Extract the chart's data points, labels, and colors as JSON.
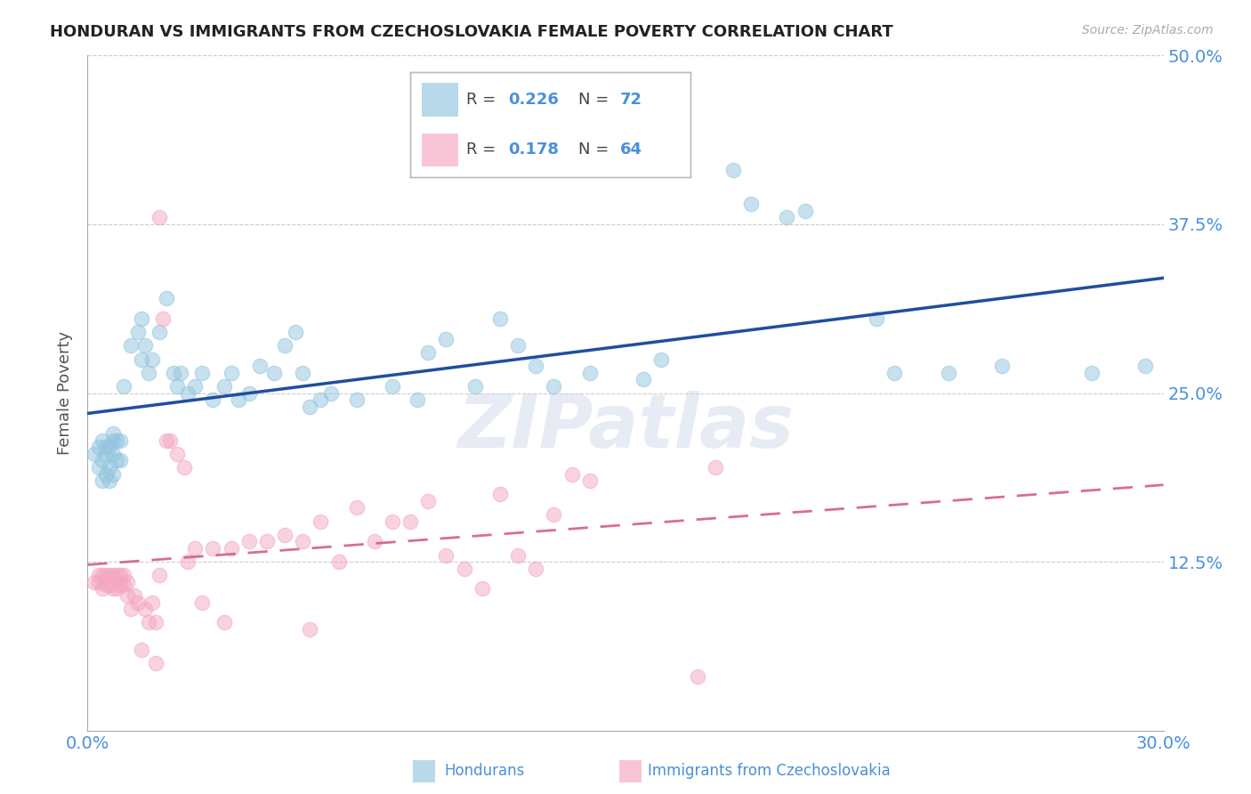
{
  "title": "HONDURAN VS IMMIGRANTS FROM CZECHOSLOVAKIA FEMALE POVERTY CORRELATION CHART",
  "source": "Source: ZipAtlas.com",
  "ylabel_label": "Female Poverty",
  "xmin": 0.0,
  "xmax": 0.3,
  "ymin": 0.0,
  "ymax": 0.5,
  "blue_color": "#92c5de",
  "pink_color": "#f4a6c0",
  "blue_line_color": "#1f4e9e",
  "pink_line_color": "#d4607a",
  "background_color": "#ffffff",
  "grid_color": "#cccccc",
  "title_color": "#222222",
  "axis_label_color": "#555555",
  "tick_label_color": "#4a90d9",
  "watermark": "ZIPatlas",
  "blue_R": 0.226,
  "blue_N": 72,
  "pink_R": 0.178,
  "pink_N": 64,
  "blue_points": [
    [
      0.002,
      0.205
    ],
    [
      0.003,
      0.195
    ],
    [
      0.003,
      0.21
    ],
    [
      0.004,
      0.2
    ],
    [
      0.004,
      0.185
    ],
    [
      0.004,
      0.215
    ],
    [
      0.005,
      0.19
    ],
    [
      0.005,
      0.21
    ],
    [
      0.005,
      0.205
    ],
    [
      0.006,
      0.185
    ],
    [
      0.006,
      0.21
    ],
    [
      0.006,
      0.195
    ],
    [
      0.007,
      0.205
    ],
    [
      0.007,
      0.215
    ],
    [
      0.007,
      0.19
    ],
    [
      0.007,
      0.22
    ],
    [
      0.008,
      0.215
    ],
    [
      0.008,
      0.2
    ],
    [
      0.009,
      0.215
    ],
    [
      0.009,
      0.2
    ],
    [
      0.01,
      0.255
    ],
    [
      0.012,
      0.285
    ],
    [
      0.014,
      0.295
    ],
    [
      0.015,
      0.275
    ],
    [
      0.015,
      0.305
    ],
    [
      0.016,
      0.285
    ],
    [
      0.017,
      0.265
    ],
    [
      0.018,
      0.275
    ],
    [
      0.02,
      0.295
    ],
    [
      0.022,
      0.32
    ],
    [
      0.024,
      0.265
    ],
    [
      0.025,
      0.255
    ],
    [
      0.026,
      0.265
    ],
    [
      0.028,
      0.25
    ],
    [
      0.03,
      0.255
    ],
    [
      0.032,
      0.265
    ],
    [
      0.035,
      0.245
    ],
    [
      0.038,
      0.255
    ],
    [
      0.04,
      0.265
    ],
    [
      0.042,
      0.245
    ],
    [
      0.045,
      0.25
    ],
    [
      0.048,
      0.27
    ],
    [
      0.052,
      0.265
    ],
    [
      0.055,
      0.285
    ],
    [
      0.058,
      0.295
    ],
    [
      0.06,
      0.265
    ],
    [
      0.062,
      0.24
    ],
    [
      0.065,
      0.245
    ],
    [
      0.068,
      0.25
    ],
    [
      0.075,
      0.245
    ],
    [
      0.085,
      0.255
    ],
    [
      0.092,
      0.245
    ],
    [
      0.095,
      0.28
    ],
    [
      0.1,
      0.29
    ],
    [
      0.108,
      0.255
    ],
    [
      0.115,
      0.305
    ],
    [
      0.12,
      0.285
    ],
    [
      0.125,
      0.27
    ],
    [
      0.13,
      0.255
    ],
    [
      0.14,
      0.265
    ],
    [
      0.155,
      0.26
    ],
    [
      0.16,
      0.275
    ],
    [
      0.18,
      0.415
    ],
    [
      0.185,
      0.39
    ],
    [
      0.195,
      0.38
    ],
    [
      0.2,
      0.385
    ],
    [
      0.22,
      0.305
    ],
    [
      0.225,
      0.265
    ],
    [
      0.24,
      0.265
    ],
    [
      0.255,
      0.27
    ],
    [
      0.28,
      0.265
    ],
    [
      0.295,
      0.27
    ]
  ],
  "pink_points": [
    [
      0.002,
      0.11
    ],
    [
      0.003,
      0.115
    ],
    [
      0.003,
      0.11
    ],
    [
      0.004,
      0.115
    ],
    [
      0.004,
      0.105
    ],
    [
      0.005,
      0.115
    ],
    [
      0.005,
      0.108
    ],
    [
      0.006,
      0.115
    ],
    [
      0.006,
      0.108
    ],
    [
      0.007,
      0.115
    ],
    [
      0.007,
      0.105
    ],
    [
      0.008,
      0.115
    ],
    [
      0.008,
      0.105
    ],
    [
      0.009,
      0.115
    ],
    [
      0.009,
      0.108
    ],
    [
      0.01,
      0.115
    ],
    [
      0.01,
      0.108
    ],
    [
      0.011,
      0.11
    ],
    [
      0.011,
      0.1
    ],
    [
      0.012,
      0.09
    ],
    [
      0.013,
      0.1
    ],
    [
      0.014,
      0.095
    ],
    [
      0.015,
      0.06
    ],
    [
      0.016,
      0.09
    ],
    [
      0.017,
      0.08
    ],
    [
      0.018,
      0.095
    ],
    [
      0.019,
      0.08
    ],
    [
      0.019,
      0.05
    ],
    [
      0.02,
      0.115
    ],
    [
      0.02,
      0.38
    ],
    [
      0.021,
      0.305
    ],
    [
      0.022,
      0.215
    ],
    [
      0.023,
      0.215
    ],
    [
      0.025,
      0.205
    ],
    [
      0.027,
      0.195
    ],
    [
      0.028,
      0.125
    ],
    [
      0.03,
      0.135
    ],
    [
      0.032,
      0.095
    ],
    [
      0.035,
      0.135
    ],
    [
      0.038,
      0.08
    ],
    [
      0.04,
      0.135
    ],
    [
      0.045,
      0.14
    ],
    [
      0.05,
      0.14
    ],
    [
      0.055,
      0.145
    ],
    [
      0.06,
      0.14
    ],
    [
      0.062,
      0.075
    ],
    [
      0.065,
      0.155
    ],
    [
      0.07,
      0.125
    ],
    [
      0.075,
      0.165
    ],
    [
      0.08,
      0.14
    ],
    [
      0.085,
      0.155
    ],
    [
      0.09,
      0.155
    ],
    [
      0.095,
      0.17
    ],
    [
      0.1,
      0.13
    ],
    [
      0.105,
      0.12
    ],
    [
      0.11,
      0.105
    ],
    [
      0.115,
      0.175
    ],
    [
      0.12,
      0.13
    ],
    [
      0.125,
      0.12
    ],
    [
      0.13,
      0.16
    ],
    [
      0.135,
      0.19
    ],
    [
      0.14,
      0.185
    ],
    [
      0.17,
      0.04
    ],
    [
      0.175,
      0.195
    ]
  ]
}
